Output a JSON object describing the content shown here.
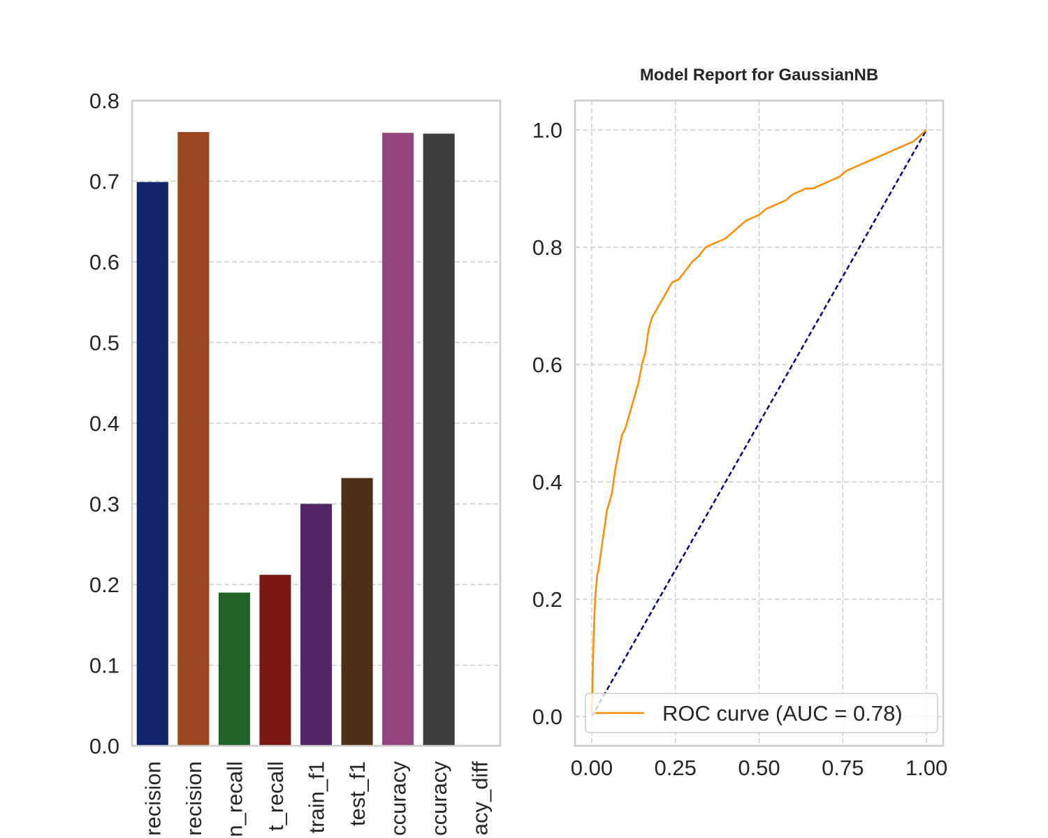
{
  "chart_data": [
    {
      "type": "bar",
      "title": "",
      "xlabel": "",
      "ylabel": "",
      "ylim": [
        0,
        0.8
      ],
      "yticks": [
        "0.0",
        "0.1",
        "0.2",
        "0.3",
        "0.4",
        "0.5",
        "0.6",
        "0.7",
        "0.8"
      ],
      "grid": "horizontal dashed",
      "categories": [
        "recision",
        "recision",
        "n_recall",
        "t_recall",
        "train_f1",
        "test_f1",
        "ccuracy",
        "ccuracy",
        "acy_diff"
      ],
      "values": [
        0.699,
        0.761,
        0.19,
        0.212,
        0.3,
        0.332,
        0.76,
        0.759,
        0.0
      ],
      "colors": [
        "#12246b",
        "#9b4722",
        "#1f6326",
        "#7a1913",
        "#532766",
        "#4e2f17",
        "#93447c",
        "#3c3c3c",
        "#888888"
      ]
    },
    {
      "type": "line",
      "title": "Model Report for GaussianNB",
      "xlabel": "",
      "ylabel": "",
      "xlim": [
        -0.05,
        1.05
      ],
      "ylim": [
        -0.05,
        1.05
      ],
      "xticks": [
        "0.00",
        "0.25",
        "0.50",
        "0.75",
        "1.00"
      ],
      "yticks": [
        "0.0",
        "0.2",
        "0.4",
        "0.6",
        "0.8",
        "1.0"
      ],
      "grid": "both dashed",
      "legend_position": "lower-right",
      "series": [
        {
          "name": "ROC curve (AUC = 0.78)",
          "color": "#ff8c00",
          "x": [
            0.0,
            0.002,
            0.004,
            0.006,
            0.008,
            0.01,
            0.013,
            0.016,
            0.02,
            0.025,
            0.03,
            0.035,
            0.04,
            0.045,
            0.05,
            0.06,
            0.07,
            0.08,
            0.09,
            0.1,
            0.11,
            0.12,
            0.13,
            0.14,
            0.15,
            0.16,
            0.17,
            0.18,
            0.19,
            0.2,
            0.22,
            0.24,
            0.26,
            0.28,
            0.3,
            0.32,
            0.34,
            0.36,
            0.38,
            0.4,
            0.42,
            0.44,
            0.46,
            0.48,
            0.5,
            0.52,
            0.54,
            0.56,
            0.58,
            0.6,
            0.62,
            0.64,
            0.66,
            0.68,
            0.7,
            0.72,
            0.74,
            0.76,
            0.78,
            0.8,
            0.82,
            0.84,
            0.86,
            0.88,
            0.9,
            0.92,
            0.94,
            0.96,
            0.98,
            1.0
          ],
          "y": [
            0.0,
            0.05,
            0.1,
            0.14,
            0.17,
            0.2,
            0.22,
            0.24,
            0.25,
            0.27,
            0.29,
            0.31,
            0.33,
            0.35,
            0.36,
            0.38,
            0.42,
            0.45,
            0.48,
            0.49,
            0.51,
            0.53,
            0.55,
            0.57,
            0.6,
            0.62,
            0.66,
            0.68,
            0.69,
            0.7,
            0.72,
            0.74,
            0.745,
            0.76,
            0.775,
            0.785,
            0.8,
            0.805,
            0.81,
            0.815,
            0.825,
            0.835,
            0.845,
            0.85,
            0.855,
            0.865,
            0.87,
            0.875,
            0.88,
            0.89,
            0.895,
            0.9,
            0.9,
            0.905,
            0.91,
            0.915,
            0.92,
            0.93,
            0.935,
            0.94,
            0.945,
            0.95,
            0.955,
            0.96,
            0.965,
            0.97,
            0.975,
            0.98,
            0.99,
            1.0
          ]
        },
        {
          "name": "",
          "color": "#000080",
          "style": "dashed",
          "x": [
            0.0,
            1.0
          ],
          "y": [
            0.0,
            1.0
          ]
        }
      ]
    }
  ]
}
